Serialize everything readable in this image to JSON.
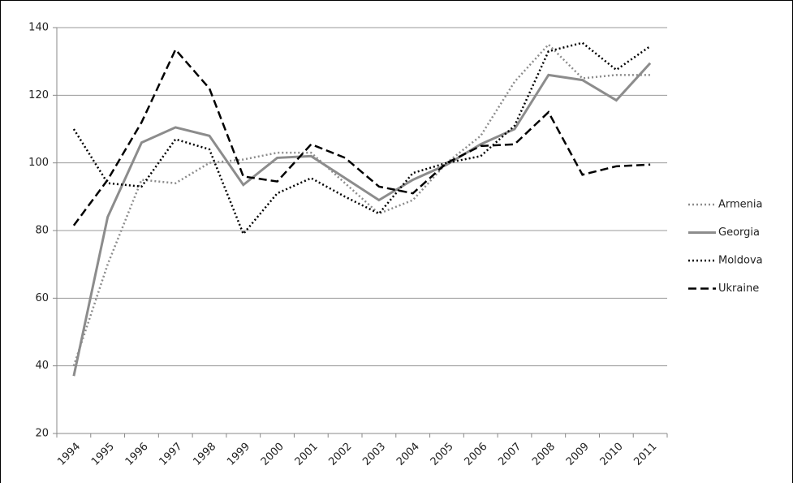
{
  "chart_data": {
    "type": "line",
    "categories": [
      "1994",
      "1995",
      "1996",
      "1997",
      "1998",
      "1999",
      "2000",
      "2001",
      "2002",
      "2003",
      "2004",
      "2005",
      "2006",
      "2007",
      "2008",
      "2009",
      "2010",
      "2011"
    ],
    "series": [
      {
        "name": "Armenia",
        "color": "#8c8c8c",
        "style": "dotted",
        "values": [
          40,
          70,
          95,
          94,
          100,
          101,
          103,
          103,
          94,
          85,
          89,
          100,
          108,
          124,
          135,
          125,
          126,
          126
        ]
      },
      {
        "name": "Georgia",
        "color": "#8c8c8c",
        "style": "solid",
        "values": [
          37,
          84,
          106,
          110.5,
          108,
          93.5,
          101.5,
          102,
          95.5,
          89,
          95,
          99.5,
          105.5,
          110,
          126,
          124.5,
          118.5,
          129.5
        ]
      },
      {
        "name": "Moldova",
        "color": "#000000",
        "style": "dotted",
        "values": [
          110,
          94,
          93,
          107,
          104,
          79,
          91,
          95.5,
          90,
          85,
          97,
          100,
          102,
          111,
          133,
          135.5,
          127.5,
          134.5
        ]
      },
      {
        "name": "Ukraine",
        "color": "#000000",
        "style": "dashed",
        "values": [
          81.5,
          95,
          112,
          133.5,
          122,
          96,
          94.5,
          105.5,
          101.5,
          93,
          91,
          100,
          105,
          105.5,
          115,
          96.5,
          99,
          99.5
        ]
      }
    ],
    "ylim": [
      20,
      140
    ],
    "yticks": [
      20,
      40,
      60,
      80,
      100,
      120,
      140
    ],
    "grid": true,
    "legend": "right"
  }
}
